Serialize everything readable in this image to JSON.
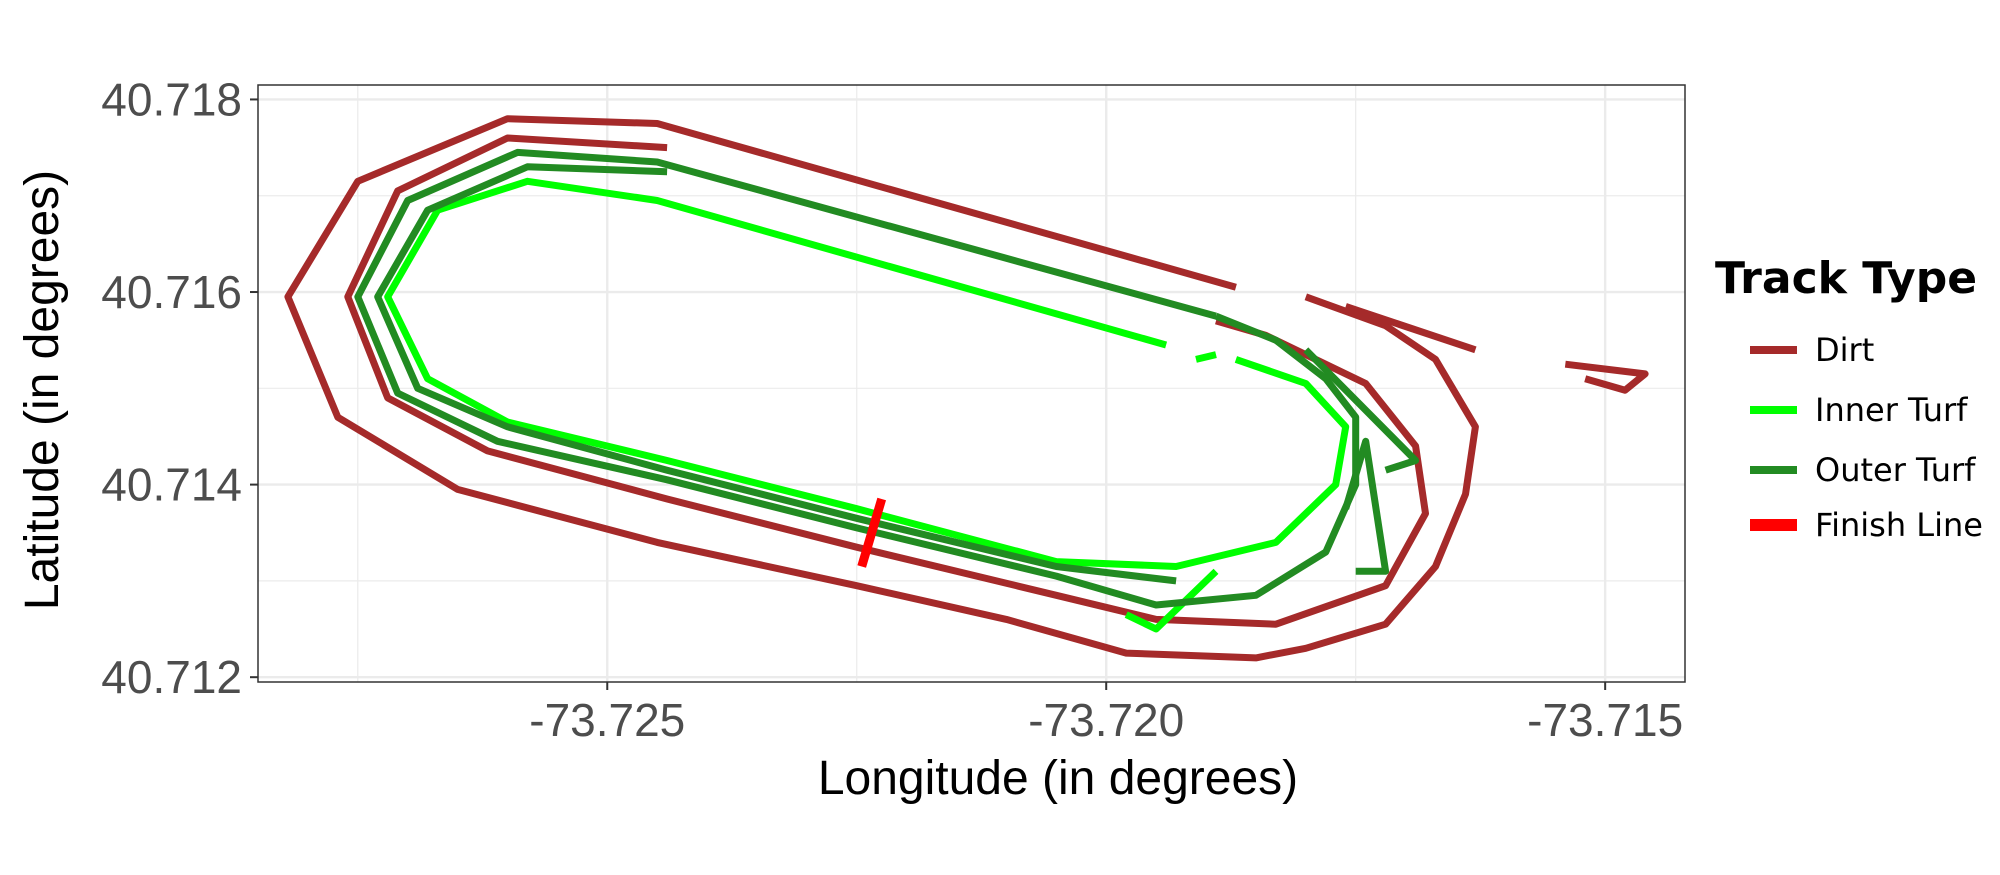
{
  "chart_data": {
    "type": "line",
    "title": "",
    "xlabel": "Longitude (in degrees)",
    "ylabel": "Latitude (in degrees)",
    "xlim": [
      -73.7285,
      -73.7142
    ],
    "ylim": [
      40.71195,
      40.71815
    ],
    "x_ticks": [
      -73.725,
      -73.72,
      -73.715
    ],
    "x_tick_labels": [
      "-73.725",
      "-73.720",
      "-73.715"
    ],
    "y_ticks": [
      40.712,
      40.714,
      40.716,
      40.718
    ],
    "y_tick_labels": [
      "40.712",
      "40.714",
      "40.716",
      "40.718"
    ],
    "grid": true,
    "legend": {
      "title": "Track Type",
      "placement": "right",
      "entries": [
        {
          "label": "Dirt",
          "color": "#a52a2a"
        },
        {
          "label": "Inner Turf",
          "color": "#00ff00"
        },
        {
          "label": "Outer Turf",
          "color": "#228b22"
        },
        {
          "label": "Finish Line",
          "color": "#ff0000"
        }
      ]
    },
    "series": [
      {
        "name": "Dirt",
        "color": "#a52a2a",
        "paths": [
          [
            [
              -73.7187,
              40.71605
            ],
            [
              -73.7245,
              40.71775
            ],
            [
              -73.726,
              40.7178
            ],
            [
              -73.7275,
              40.71715
            ],
            [
              -73.7282,
              40.71595
            ],
            [
              -73.7277,
              40.7147
            ],
            [
              -73.7265,
              40.71395
            ],
            [
              -73.7245,
              40.7134
            ],
            [
              -73.7225,
              40.71295
            ],
            [
              -73.721,
              40.7126
            ],
            [
              -73.7198,
              40.71225
            ],
            [
              -73.7185,
              40.7122
            ],
            [
              -73.718,
              40.7123
            ],
            [
              -73.7172,
              40.71255
            ],
            [
              -73.7167,
              40.71315
            ],
            [
              -73.7164,
              40.7139
            ],
            [
              -73.7163,
              40.7146
            ],
            [
              -73.7167,
              40.7153
            ],
            [
              -73.7172,
              40.71565
            ],
            [
              -73.718,
              40.71595
            ]
          ],
          [
            [
              -73.7176,
              40.71585
            ],
            [
              -73.7163,
              40.7154
            ]
          ],
          [
            [
              -73.7154,
              40.71525
            ],
            [
              -73.7146,
              40.71515
            ],
            [
              -73.7148,
              40.71498
            ],
            [
              -73.7152,
              40.7151
            ]
          ],
          [
            [
              -73.7244,
              40.7175
            ],
            [
              -73.726,
              40.7176
            ],
            [
              -73.7271,
              40.71705
            ],
            [
              -73.7276,
              40.71595
            ],
            [
              -73.7272,
              40.7149
            ],
            [
              -73.7262,
              40.71435
            ],
            [
              -73.7244,
              40.71385
            ],
            [
              -73.7225,
              40.71335
            ],
            [
              -73.7205,
              40.71285
            ],
            [
              -73.7195,
              40.7126
            ],
            [
              -73.7183,
              40.71255
            ],
            [
              -73.7172,
              40.71295
            ],
            [
              -73.7168,
              40.7137
            ],
            [
              -73.7169,
              40.7144
            ],
            [
              -73.7174,
              40.71505
            ],
            [
              -73.7184,
              40.71555
            ],
            [
              -73.7189,
              40.7157
            ]
          ]
        ]
      },
      {
        "name": "Inner Turf",
        "color": "#00ff00",
        "paths": [
          [
            [
              -73.7194,
              40.71545
            ],
            [
              -73.7245,
              40.71695
            ],
            [
              -73.7258,
              40.71715
            ],
            [
              -73.7267,
              40.71685
            ],
            [
              -73.7272,
              40.71595
            ],
            [
              -73.7268,
              40.7151
            ],
            [
              -73.726,
              40.71465
            ],
            [
              -73.7244,
              40.71425
            ],
            [
              -73.7225,
              40.71375
            ],
            [
              -73.7205,
              40.7132
            ],
            [
              -73.7193,
              40.71315
            ],
            [
              -73.7183,
              40.7134
            ],
            [
              -73.7177,
              40.714
            ],
            [
              -73.7176,
              40.7146
            ],
            [
              -73.718,
              40.71505
            ],
            [
              -73.7187,
              40.7153
            ]
          ],
          [
            [
              -73.7189,
              40.71535
            ],
            [
              -73.7191,
              40.7153
            ]
          ],
          [
            [
              -73.7198,
              40.71265
            ],
            [
              -73.7195,
              40.7125
            ],
            [
              -73.7189,
              40.7131
            ]
          ]
        ]
      },
      {
        "name": "Outer Turf",
        "color": "#228b22",
        "paths": [
          [
            [
              -73.7189,
              40.71575
            ],
            [
              -73.7245,
              40.71735
            ],
            [
              -73.7259,
              40.71745
            ],
            [
              -73.727,
              40.71695
            ],
            [
              -73.7275,
              40.71595
            ],
            [
              -73.7271,
              40.71495
            ],
            [
              -73.7261,
              40.71445
            ],
            [
              -73.7244,
              40.71405
            ],
            [
              -73.7225,
              40.71355
            ],
            [
              -73.7205,
              40.71305
            ],
            [
              -73.7195,
              40.71275
            ],
            [
              -73.7185,
              40.71285
            ],
            [
              -73.7178,
              40.7133
            ],
            [
              -73.7175,
              40.714
            ],
            [
              -73.7175,
              40.7147
            ],
            [
              -73.7178,
              40.7151
            ],
            [
              -73.7183,
              40.7155
            ],
            [
              -73.7189,
              40.71575
            ]
          ],
          [
            [
              -73.7244,
              40.71725
            ],
            [
              -73.7258,
              40.7173
            ],
            [
              -73.7268,
              40.71685
            ],
            [
              -73.7273,
              40.71595
            ],
            [
              -73.7269,
              40.715
            ],
            [
              -73.726,
              40.7146
            ],
            [
              -73.7244,
              40.71415
            ],
            [
              -73.7225,
              40.71365
            ],
            [
              -73.7205,
              40.71315
            ],
            [
              -73.7193,
              40.713
            ]
          ],
          [
            [
              -73.718,
              40.7154
            ],
            [
              -73.7169,
              40.71425
            ],
            [
              -73.7172,
              40.71415
            ]
          ],
          [
            [
              -73.7176,
              40.71375
            ],
            [
              -73.7174,
              40.71445
            ],
            [
              -73.7172,
              40.7131
            ],
            [
              -73.7175,
              40.7131
            ]
          ]
        ]
      },
      {
        "name": "Finish Line",
        "color": "#ff0000",
        "paths": [
          [
            [
              -73.72245,
              40.71315
            ],
            [
              -73.72225,
              40.71385
            ]
          ]
        ]
      }
    ]
  }
}
